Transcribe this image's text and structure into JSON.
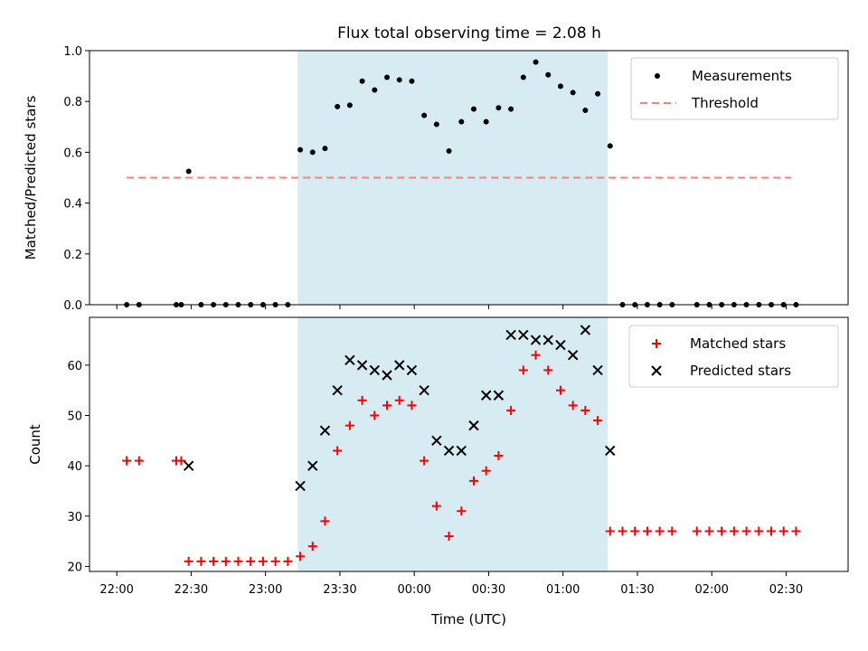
{
  "figure": {
    "title": "Flux total observing time = 2.08 h",
    "xlabel": "Time (UTC)",
    "colors": {
      "shade": "#add8e6",
      "shade_alpha": 0.5,
      "measurement": "#000000",
      "threshold": "#ff7f7f",
      "matched": "#ff0000",
      "predicted": "#000000"
    }
  },
  "chart_data": [
    {
      "type": "scatter",
      "panel": "top",
      "ylabel": "Matched/Predicted stars",
      "ylim": [
        0,
        1.0
      ],
      "yticks": [
        0.0,
        0.2,
        0.4,
        0.6,
        0.8,
        1.0
      ],
      "ytick_labels": [
        "0.0",
        "0.2",
        "0.4",
        "0.6",
        "0.8",
        "1.0"
      ],
      "xlim": [
        "21:49",
        "02:55"
      ],
      "shaded_interval": [
        "23:13",
        "01:18"
      ],
      "legend": {
        "position": "top-right",
        "entries": [
          "Measurements",
          "Threshold"
        ]
      },
      "threshold": {
        "name": "Threshold",
        "value": 0.5,
        "x_range": [
          "22:04",
          "02:32"
        ]
      },
      "series": [
        {
          "name": "Measurements",
          "marker": "dot",
          "points": [
            [
              "22:04",
              0
            ],
            [
              "22:09",
              0
            ],
            [
              "22:24",
              0
            ],
            [
              "22:26",
              0
            ],
            [
              "22:29",
              0.525
            ],
            [
              "22:34",
              0
            ],
            [
              "22:39",
              0
            ],
            [
              "22:44",
              0
            ],
            [
              "22:49",
              0
            ],
            [
              "22:54",
              0
            ],
            [
              "22:59",
              0
            ],
            [
              "23:04",
              0
            ],
            [
              "23:09",
              0
            ],
            [
              "23:14",
              0.61
            ],
            [
              "23:19",
              0.6
            ],
            [
              "23:24",
              0.615
            ],
            [
              "23:29",
              0.78
            ],
            [
              "23:34",
              0.785
            ],
            [
              "23:39",
              0.88
            ],
            [
              "23:44",
              0.845
            ],
            [
              "23:49",
              0.895
            ],
            [
              "23:54",
              0.885
            ],
            [
              "23:59",
              0.88
            ],
            [
              "00:04",
              0.745
            ],
            [
              "00:09",
              0.71
            ],
            [
              "00:14",
              0.605
            ],
            [
              "00:19",
              0.72
            ],
            [
              "00:24",
              0.77
            ],
            [
              "00:29",
              0.72
            ],
            [
              "00:34",
              0.775
            ],
            [
              "00:39",
              0.77
            ],
            [
              "00:44",
              0.895
            ],
            [
              "00:49",
              0.955
            ],
            [
              "00:54",
              0.905
            ],
            [
              "00:59",
              0.86
            ],
            [
              "01:04",
              0.835
            ],
            [
              "01:09",
              0.765
            ],
            [
              "01:14",
              0.83
            ],
            [
              "01:19",
              0.625
            ],
            [
              "01:24",
              0
            ],
            [
              "01:29",
              0
            ],
            [
              "01:34",
              0
            ],
            [
              "01:39",
              0
            ],
            [
              "01:44",
              0
            ],
            [
              "01:54",
              0
            ],
            [
              "01:59",
              0
            ],
            [
              "02:04",
              0
            ],
            [
              "02:09",
              0
            ],
            [
              "02:14",
              0
            ],
            [
              "02:19",
              0
            ],
            [
              "02:24",
              0
            ],
            [
              "02:29",
              0
            ],
            [
              "02:34",
              0
            ]
          ]
        }
      ]
    },
    {
      "type": "scatter",
      "panel": "bottom",
      "ylabel": "Count",
      "ylim": [
        19,
        69.5
      ],
      "yticks": [
        20,
        30,
        40,
        50,
        60
      ],
      "ytick_labels": [
        "20",
        "30",
        "40",
        "50",
        "60"
      ],
      "xlim": [
        "21:49",
        "02:55"
      ],
      "xticks": [
        "22:00",
        "22:30",
        "23:00",
        "23:30",
        "00:00",
        "00:30",
        "01:00",
        "01:30",
        "02:00",
        "02:30"
      ],
      "xtick_labels": [
        "22:00",
        "22:30",
        "23:00",
        "23:30",
        "00:00",
        "00:30",
        "01:00",
        "01:30",
        "02:00",
        "02:30"
      ],
      "shaded_interval": [
        "23:13",
        "01:18"
      ],
      "legend": {
        "position": "top-right",
        "entries": [
          "Matched stars",
          "Predicted stars"
        ]
      },
      "series": [
        {
          "name": "Matched stars",
          "marker": "plus",
          "points": [
            [
              "22:04",
              41
            ],
            [
              "22:09",
              41
            ],
            [
              "22:24",
              41
            ],
            [
              "22:26",
              41
            ],
            [
              "22:29",
              21
            ],
            [
              "22:34",
              21
            ],
            [
              "22:39",
              21
            ],
            [
              "22:44",
              21
            ],
            [
              "22:49",
              21
            ],
            [
              "22:54",
              21
            ],
            [
              "22:59",
              21
            ],
            [
              "23:04",
              21
            ],
            [
              "23:09",
              21
            ],
            [
              "23:14",
              22
            ],
            [
              "23:19",
              24
            ],
            [
              "23:24",
              29
            ],
            [
              "23:29",
              43
            ],
            [
              "23:34",
              48
            ],
            [
              "23:39",
              53
            ],
            [
              "23:44",
              50
            ],
            [
              "23:49",
              52
            ],
            [
              "23:54",
              53
            ],
            [
              "23:59",
              52
            ],
            [
              "00:04",
              41
            ],
            [
              "00:09",
              32
            ],
            [
              "00:14",
              26
            ],
            [
              "00:19",
              31
            ],
            [
              "00:24",
              37
            ],
            [
              "00:29",
              39
            ],
            [
              "00:34",
              42
            ],
            [
              "00:39",
              51
            ],
            [
              "00:44",
              59
            ],
            [
              "00:49",
              62
            ],
            [
              "00:54",
              59
            ],
            [
              "00:59",
              55
            ],
            [
              "01:04",
              52
            ],
            [
              "01:09",
              51
            ],
            [
              "01:14",
              49
            ],
            [
              "01:19",
              27
            ],
            [
              "01:24",
              27
            ],
            [
              "01:29",
              27
            ],
            [
              "01:34",
              27
            ],
            [
              "01:39",
              27
            ],
            [
              "01:44",
              27
            ],
            [
              "01:54",
              27
            ],
            [
              "01:59",
              27
            ],
            [
              "02:04",
              27
            ],
            [
              "02:09",
              27
            ],
            [
              "02:14",
              27
            ],
            [
              "02:19",
              27
            ],
            [
              "02:24",
              27
            ],
            [
              "02:29",
              27
            ],
            [
              "02:34",
              27
            ]
          ]
        },
        {
          "name": "Predicted stars",
          "marker": "x",
          "points": [
            [
              "22:29",
              40
            ],
            [
              "23:14",
              36
            ],
            [
              "23:19",
              40
            ],
            [
              "23:24",
              47
            ],
            [
              "23:29",
              55
            ],
            [
              "23:34",
              61
            ],
            [
              "23:39",
              60
            ],
            [
              "23:44",
              59
            ],
            [
              "23:49",
              58
            ],
            [
              "23:54",
              60
            ],
            [
              "23:59",
              59
            ],
            [
              "00:04",
              55
            ],
            [
              "00:09",
              45
            ],
            [
              "00:14",
              43
            ],
            [
              "00:19",
              43
            ],
            [
              "00:24",
              48
            ],
            [
              "00:29",
              54
            ],
            [
              "00:34",
              54
            ],
            [
              "00:39",
              66
            ],
            [
              "00:44",
              66
            ],
            [
              "00:49",
              65
            ],
            [
              "00:54",
              65
            ],
            [
              "00:59",
              64
            ],
            [
              "01:04",
              62
            ],
            [
              "01:09",
              67
            ],
            [
              "01:14",
              59
            ],
            [
              "01:19",
              43
            ]
          ]
        }
      ]
    }
  ]
}
